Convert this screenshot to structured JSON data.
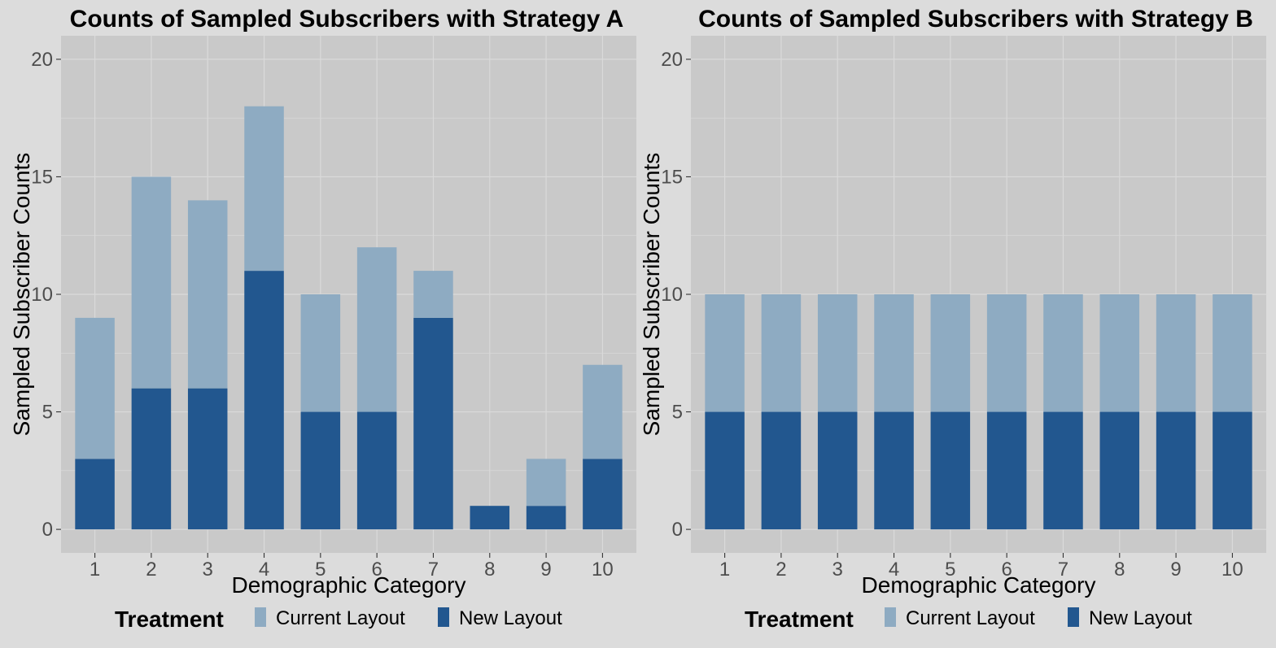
{
  "chart_data": [
    {
      "type": "bar",
      "stacked": true,
      "title": "Counts of Sampled Subscribers with Strategy A",
      "xlabel": "Demographic Category",
      "ylabel": "Sampled Subscriber Counts",
      "categories": [
        "1",
        "2",
        "3",
        "4",
        "5",
        "6",
        "7",
        "8",
        "9",
        "10"
      ],
      "yticks": [
        "0",
        "5",
        "10",
        "15",
        "20"
      ],
      "ylim": [
        -1,
        21
      ],
      "grid": true,
      "legend": {
        "title": "Treatment",
        "position": "bottom"
      },
      "series": [
        {
          "name": "Current Layout",
          "color": "#8eabc2",
          "values": [
            6,
            9,
            8,
            7,
            5,
            7,
            2,
            0,
            2,
            4
          ]
        },
        {
          "name": "New Layout",
          "color": "#22578f",
          "values": [
            3,
            6,
            6,
            11,
            5,
            5,
            9,
            1,
            1,
            3
          ]
        }
      ]
    },
    {
      "type": "bar",
      "stacked": true,
      "title": "Counts of Sampled Subscribers with Strategy B",
      "xlabel": "Demographic Category",
      "ylabel": "Sampled Subscriber Counts",
      "categories": [
        "1",
        "2",
        "3",
        "4",
        "5",
        "6",
        "7",
        "8",
        "9",
        "10"
      ],
      "yticks": [
        "0",
        "5",
        "10",
        "15",
        "20"
      ],
      "ylim": [
        -1,
        21
      ],
      "grid": true,
      "legend": {
        "title": "Treatment",
        "position": "bottom"
      },
      "series": [
        {
          "name": "Current Layout",
          "color": "#8eabc2",
          "values": [
            5,
            5,
            5,
            5,
            5,
            5,
            5,
            5,
            5,
            5
          ]
        },
        {
          "name": "New Layout",
          "color": "#22578f",
          "values": [
            5,
            5,
            5,
            5,
            5,
            5,
            5,
            5,
            5,
            5
          ]
        }
      ]
    }
  ],
  "colors": {
    "page_background": "#dcdcdc",
    "panel_background": "#c9c9c9",
    "gridline": "#dadada"
  }
}
